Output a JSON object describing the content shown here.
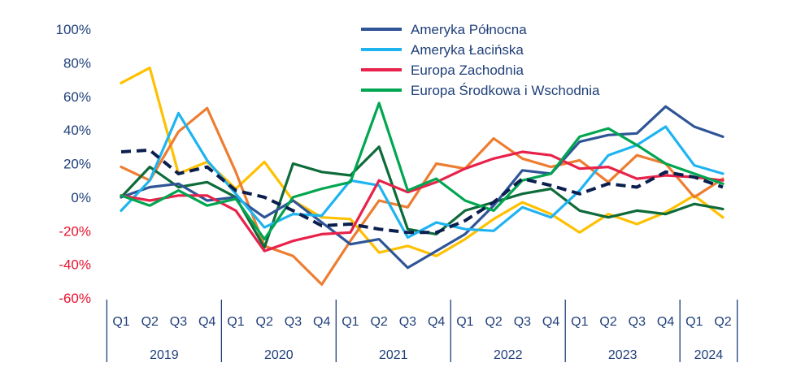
{
  "chart_data": {
    "type": "line",
    "title": "",
    "xlabel": "",
    "ylabel": "",
    "ylim": [
      -60,
      100
    ],
    "y_ticks": [
      "100%",
      "80%",
      "60%",
      "40%",
      "20%",
      "0%",
      "-20%",
      "-40%",
      "-60%"
    ],
    "y_tick_values": [
      100,
      80,
      60,
      40,
      20,
      0,
      -20,
      -40,
      -60
    ],
    "categories": [
      "Q1",
      "Q2",
      "Q3",
      "Q4",
      "Q1",
      "Q2",
      "Q3",
      "Q4",
      "Q1",
      "Q2",
      "Q3",
      "Q4",
      "Q1",
      "Q2",
      "Q3",
      "Q4",
      "Q1",
      "Q2",
      "Q3",
      "Q4",
      "Q1",
      "Q2"
    ],
    "years": [
      {
        "label": "2019",
        "quarters": 4
      },
      {
        "label": "2020",
        "quarters": 4
      },
      {
        "label": "2021",
        "quarters": 4
      },
      {
        "label": "2022",
        "quarters": 4
      },
      {
        "label": "2023",
        "quarters": 4
      },
      {
        "label": "2024",
        "quarters": 2
      }
    ],
    "grid": false,
    "legend_position": "top-center",
    "series": [
      {
        "name": "",
        "color": "#ffc000",
        "dash": false,
        "legend": false,
        "values": [
          68,
          77,
          14,
          21,
          5,
          21,
          -2,
          -12,
          -13,
          -33,
          -29,
          -35,
          -25,
          -13,
          -3,
          -10,
          -21,
          -10,
          -16,
          -9,
          1,
          -12
        ]
      },
      {
        "name": "",
        "color": "#ed7d31",
        "dash": false,
        "legend": false,
        "values": [
          18,
          10,
          39,
          53,
          15,
          -29,
          -35,
          -52,
          -26,
          -2,
          -6,
          20,
          17,
          35,
          23,
          18,
          22,
          9,
          25,
          20,
          0,
          11
        ]
      },
      {
        "name": "",
        "color": "#0e6b3a",
        "dash": false,
        "legend": false,
        "values": [
          0,
          18,
          6,
          9,
          0,
          -30,
          20,
          15,
          13,
          30,
          -19,
          -22,
          -8,
          -3,
          2,
          5,
          -8,
          -12,
          -8,
          -10,
          -4,
          -7
        ]
      },
      {
        "name": "Ameryka Północna",
        "color": "#2f5597",
        "dash": false,
        "legend": true,
        "values": [
          0,
          6,
          8,
          -2,
          0,
          -12,
          -2,
          -15,
          -28,
          -25,
          -42,
          -32,
          -22,
          -5,
          16,
          14,
          33,
          37,
          38,
          54,
          42,
          36
        ]
      },
      {
        "name": "Ameryka Łacińska",
        "color": "#1fb4f0",
        "dash": false,
        "legend": true,
        "values": [
          -8,
          10,
          50,
          22,
          2,
          -18,
          -10,
          -11,
          10,
          7,
          -24,
          -15,
          -19,
          -20,
          -6,
          -12,
          4,
          25,
          31,
          42,
          19,
          14
        ]
      },
      {
        "name": "Europa Zachodnia",
        "color": "#e8224a",
        "dash": false,
        "legend": true,
        "values": [
          1,
          -2,
          1,
          1,
          -8,
          -32,
          -26,
          -22,
          -21,
          10,
          3,
          9,
          17,
          23,
          27,
          25,
          17,
          18,
          11,
          13,
          12,
          10
        ]
      },
      {
        "name": "Europa Środkowa i Wschodnia",
        "color": "#00a650",
        "dash": false,
        "legend": true,
        "values": [
          1,
          -5,
          4,
          -5,
          -1,
          -25,
          0,
          5,
          9,
          56,
          4,
          11,
          -2,
          -8,
          10,
          14,
          36,
          41,
          31,
          20,
          14,
          8
        ]
      },
      {
        "name": "",
        "color": "#0b1f4e",
        "dash": true,
        "legend": false,
        "values": [
          27,
          28,
          14,
          18,
          4,
          0,
          -8,
          -17,
          -16,
          -19,
          -21,
          -21,
          -14,
          -3,
          11,
          7,
          2,
          8,
          6,
          15,
          12,
          6
        ]
      }
    ]
  }
}
